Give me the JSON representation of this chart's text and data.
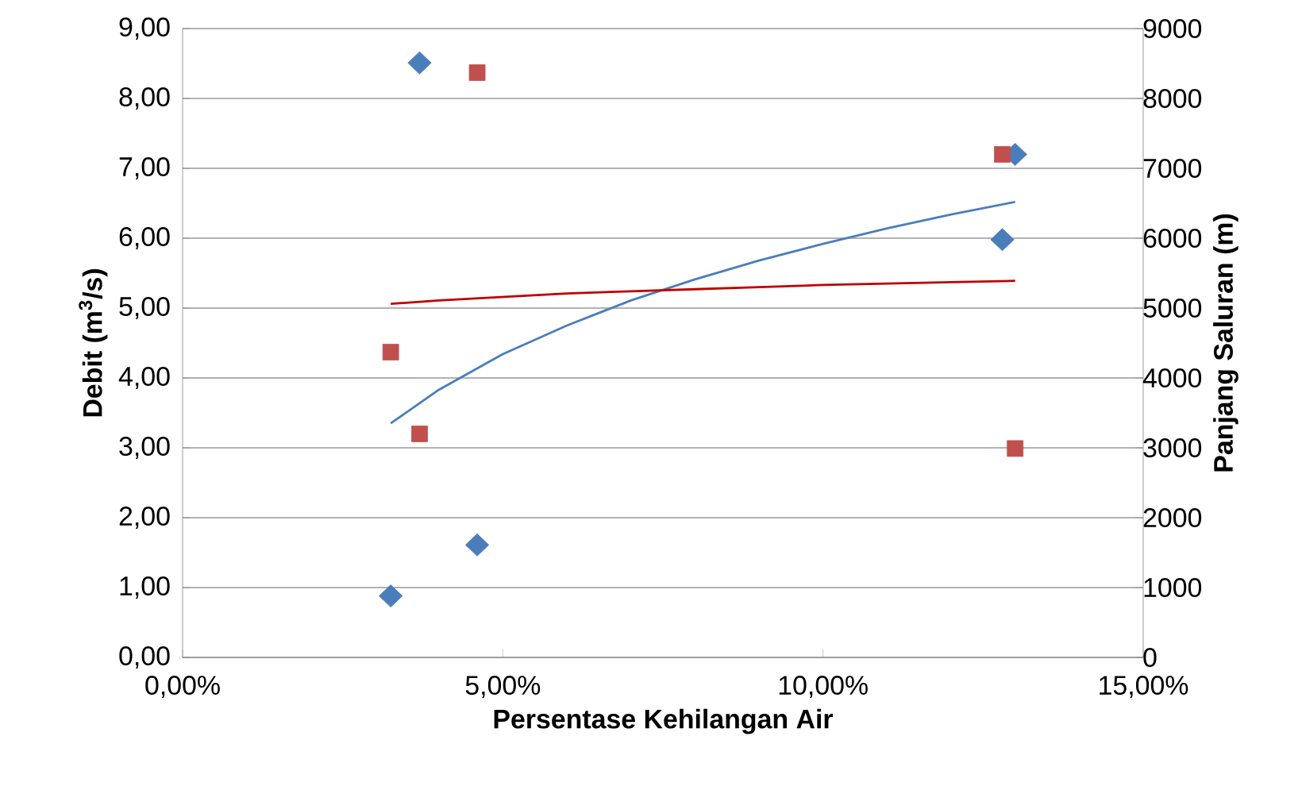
{
  "chart_data": {
    "type": "scatter",
    "xlabel": "Persentase Kehilangan Air",
    "ylabel": "Debit (m$^{3}$/s)",
    "y2label": "Panjang Saluran (m)",
    "xlim": [
      0,
      15
    ],
    "xticks": [
      {
        "value": 0,
        "label": "0,00%"
      },
      {
        "value": 5,
        "label": "5,00%"
      },
      {
        "value": 10,
        "label": "10,00%"
      },
      {
        "value": 15,
        "label": "15,00%"
      }
    ],
    "ylim": [
      0,
      9
    ],
    "yticks": [
      {
        "value": 0,
        "label": "0,00"
      },
      {
        "value": 1,
        "label": "1,00"
      },
      {
        "value": 2,
        "label": "2,00"
      },
      {
        "value": 3,
        "label": "3,00"
      },
      {
        "value": 4,
        "label": "4,00"
      },
      {
        "value": 5,
        "label": "5,00"
      },
      {
        "value": 6,
        "label": "6,00"
      },
      {
        "value": 7,
        "label": "7,00"
      },
      {
        "value": 8,
        "label": "8,00"
      },
      {
        "value": 9,
        "label": "9,00"
      }
    ],
    "y2lim": [
      0,
      9000
    ],
    "y2ticks": [
      0,
      1000,
      2000,
      3000,
      4000,
      5000,
      6000,
      7000,
      8000,
      9000
    ],
    "grid": "y",
    "legend": false,
    "series": [
      {
        "marker": "diamond",
        "color": "#4a7ebb",
        "x": [
          3.25,
          3.7,
          4.6,
          12.8,
          13.0
        ],
        "values": [
          0.88,
          8.51,
          1.61,
          5.98,
          7.2
        ]
      },
      {
        "marker": "square",
        "axis": "y2",
        "color": "#c0504d",
        "x": [
          3.25,
          3.7,
          4.6,
          12.8,
          13.0
        ],
        "values": [
          4370,
          3200,
          8370,
          7200,
          2990
        ]
      },
      {
        "type": "line",
        "color": "#4a7ebb",
        "x": [
          3.25,
          4,
          5,
          6,
          7,
          8,
          9,
          10,
          11,
          12,
          13
        ],
        "values": [
          3.35,
          3.83,
          4.34,
          4.75,
          5.11,
          5.41,
          5.68,
          5.92,
          6.14,
          6.34,
          6.52
        ]
      },
      {
        "type": "line",
        "axis": "y2",
        "color": "#c00000",
        "x": [
          3.25,
          4,
          5,
          6,
          7,
          8,
          9,
          10,
          11,
          12,
          13
        ],
        "values": [
          5060,
          5110,
          5160,
          5210,
          5240,
          5270,
          5300,
          5330,
          5350,
          5370,
          5390
        ]
      }
    ]
  }
}
